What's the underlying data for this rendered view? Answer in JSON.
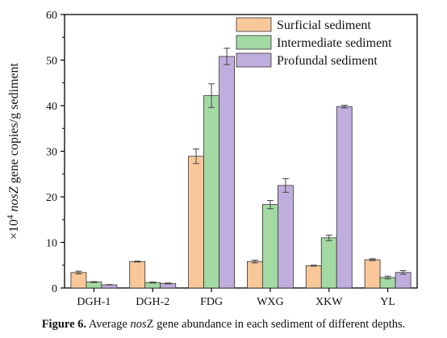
{
  "chart_data": {
    "type": "bar",
    "categories": [
      "DGH-1",
      "DGH-2",
      "FDG",
      "WXG",
      "XKW",
      "YL"
    ],
    "series": [
      {
        "name": "Surficial sediment",
        "color": "#f8c89a",
        "values": [
          3.4,
          5.8,
          28.9,
          5.8,
          4.9,
          6.2
        ],
        "errors": [
          0.3,
          0.1,
          1.6,
          0.3,
          0.1,
          0.2
        ]
      },
      {
        "name": "Intermediate sediment",
        "color": "#a3d9a3",
        "values": [
          1.3,
          1.2,
          42.2,
          18.3,
          11.0,
          2.3
        ],
        "errors": [
          0.1,
          0.1,
          2.6,
          0.9,
          0.6,
          0.3
        ]
      },
      {
        "name": "Profundal sediment",
        "color": "#bfaedd",
        "values": [
          0.7,
          1.0,
          50.8,
          22.5,
          39.8,
          3.4
        ],
        "errors": [
          0.05,
          0.1,
          1.8,
          1.5,
          0.3,
          0.4
        ]
      }
    ],
    "ylim": [
      0,
      60
    ],
    "yticks": [
      0,
      10,
      20,
      30,
      40,
      50,
      60
    ],
    "ylabel": {
      "prefix": "×10",
      "superscript": "4",
      "italic": "nosZ",
      "suffix": " gene copies/g sediment"
    },
    "xlabel": "",
    "title": "",
    "legend_position": "top-right",
    "grid": false
  },
  "caption": {
    "label": "Figure 6.",
    "text_before": " Average ",
    "emph": "nos",
    "emph_tail": "Z",
    "text_after": " gene abundance in each sediment of different depths."
  }
}
